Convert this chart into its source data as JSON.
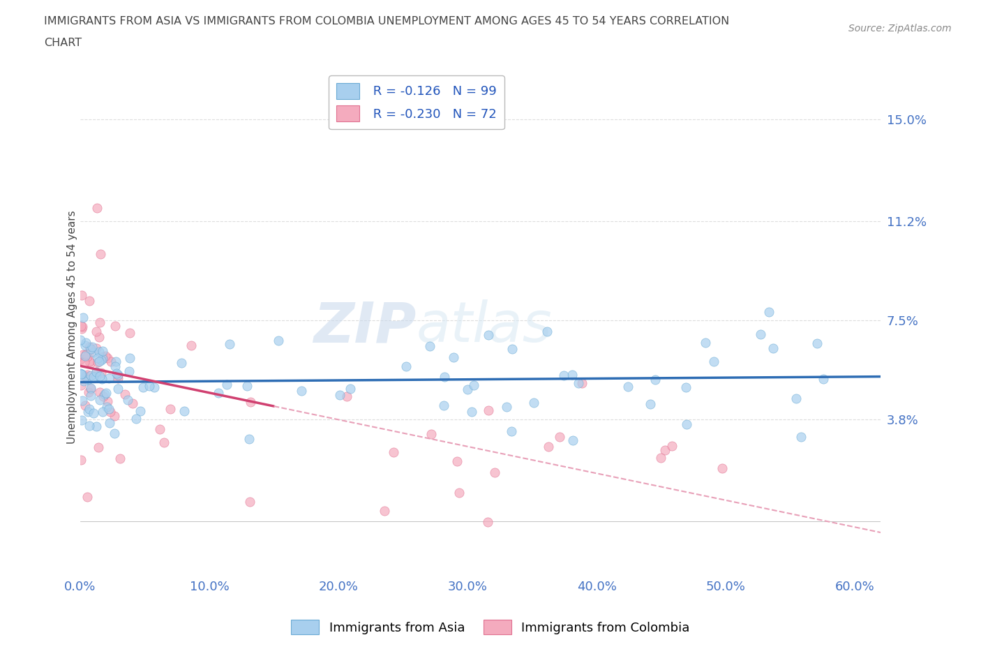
{
  "title_line1": "IMMIGRANTS FROM ASIA VS IMMIGRANTS FROM COLOMBIA UNEMPLOYMENT AMONG AGES 45 TO 54 YEARS CORRELATION",
  "title_line2": "CHART",
  "source_text": "Source: ZipAtlas.com",
  "ylabel": "Unemployment Among Ages 45 to 54 years",
  "ytick_labels": [
    "15.0%",
    "11.2%",
    "7.5%",
    "3.8%"
  ],
  "ytick_values": [
    0.15,
    0.112,
    0.075,
    0.038
  ],
  "xtick_values": [
    0.0,
    0.1,
    0.2,
    0.3,
    0.4,
    0.5,
    0.6
  ],
  "xtick_labels": [
    "0.0%",
    "10.0%",
    "20.0%",
    "30.0%",
    "40.0%",
    "50.0%",
    "60.0%"
  ],
  "xlim": [
    0.0,
    0.62
  ],
  "ylim": [
    -0.02,
    0.165
  ],
  "yplot_min": 0.0,
  "watermark_zip": "ZIP",
  "watermark_atlas": "atlas",
  "legend_asia_r": "R = -0.126",
  "legend_asia_n": "N = 99",
  "legend_colombia_r": "R = -0.230",
  "legend_colombia_n": "N = 72",
  "asia_color": "#A8CFEE",
  "asia_edge_color": "#6AAAD4",
  "colombia_color": "#F4ABBE",
  "colombia_edge_color": "#E07090",
  "asia_line_color": "#2E6DB4",
  "colombia_line_solid_color": "#D04070",
  "colombia_line_dash_color": "#E8A0B8",
  "background_color": "#ffffff",
  "title_color": "#444444",
  "axis_label_color": "#4472c4",
  "grid_color": "#dddddd",
  "watermark_color": "#d0dff0",
  "source_color": "#888888"
}
